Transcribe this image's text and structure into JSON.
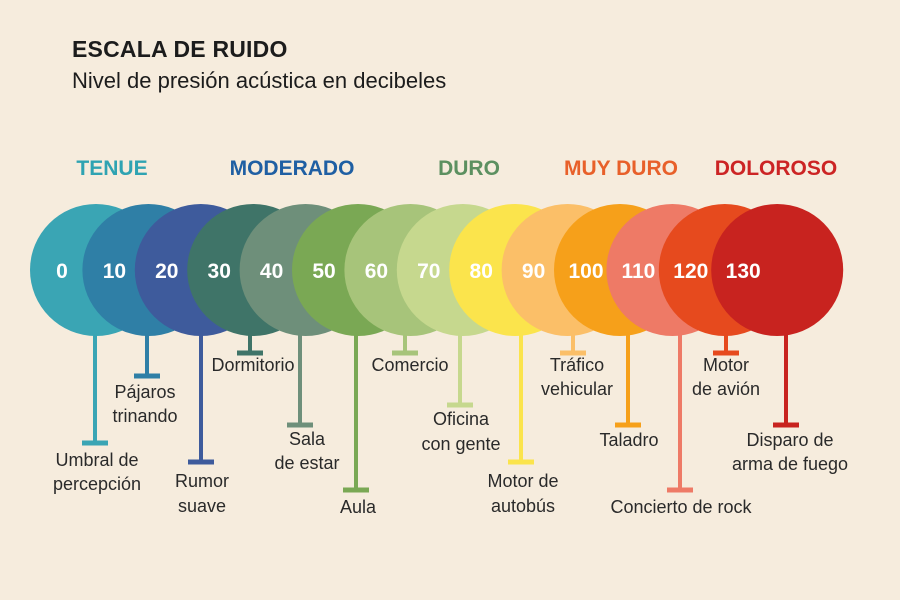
{
  "title": "ESCALA DE RUIDO",
  "subtitle": "Nivel de presión acústica en decibeles",
  "categories": [
    {
      "label": "TENUE",
      "color": "#2fa3b2"
    },
    {
      "label": "MODERADO",
      "color": "#1f5fa3"
    },
    {
      "label": "DURO",
      "color": "#5c9060"
    },
    {
      "label": "MUY DURO",
      "color": "#e8602a"
    },
    {
      "label": "DOLOROSO",
      "color": "#cc2424"
    }
  ],
  "levels": [
    {
      "db": "0",
      "color": "#3aa5b4",
      "label": [
        "Umbral de",
        "percepción"
      ]
    },
    {
      "db": "10",
      "color": "#2f7fa6",
      "label": [
        "Pájaros",
        "trinando"
      ]
    },
    {
      "db": "20",
      "color": "#3e5b9c",
      "label": [
        "Rumor",
        "suave"
      ]
    },
    {
      "db": "30",
      "color": "#3f7468",
      "label": [
        "Dormitorio"
      ]
    },
    {
      "db": "40",
      "color": "#6e8f7a",
      "label": [
        "Sala",
        "de estar"
      ]
    },
    {
      "db": "50",
      "color": "#7aa854",
      "label": [
        "Aula"
      ]
    },
    {
      "db": "60",
      "color": "#a7c47a",
      "label": [
        "Comercio"
      ]
    },
    {
      "db": "70",
      "color": "#c6d88e",
      "label": [
        "Oficina",
        "con gente"
      ]
    },
    {
      "db": "80",
      "color": "#fbe44c",
      "label": [
        "Motor de",
        "autobús"
      ]
    },
    {
      "db": "90",
      "color": "#fbbf68",
      "label": [
        "Tráfico",
        "vehicular"
      ]
    },
    {
      "db": "100",
      "color": "#f6a01a",
      "label": [
        "Taladro"
      ]
    },
    {
      "db": "110",
      "color": "#ee7a66",
      "label": [
        "Concierto de rock"
      ]
    },
    {
      "db": "120",
      "color": "#e64a1e",
      "label": [
        "Motor",
        "de avión"
      ]
    },
    {
      "db": "130",
      "color": "#c8231f",
      "label": [
        "Disparo de",
        "arma de fuego"
      ]
    }
  ]
}
